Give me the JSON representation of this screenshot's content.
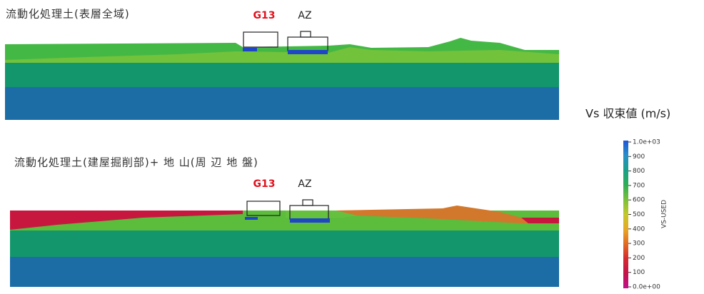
{
  "panels": [
    {
      "title": "流動化処理土(表層全域)",
      "labels": [
        "G13",
        "AZ"
      ]
    },
    {
      "title": "流動化処理土(建屋掘削部)+ 地 山(周 辺 地 盤)",
      "labels": [
        "G13",
        "AZ"
      ]
    }
  ],
  "colorbar": {
    "title": "Vs 収束値 (m/s)",
    "axis_label": "VS-USED",
    "ticks": [
      "1.0e+03",
      "900",
      "800",
      "700",
      "600",
      "500",
      "400",
      "300",
      "200",
      "100",
      "0.0e+00"
    ]
  }
}
